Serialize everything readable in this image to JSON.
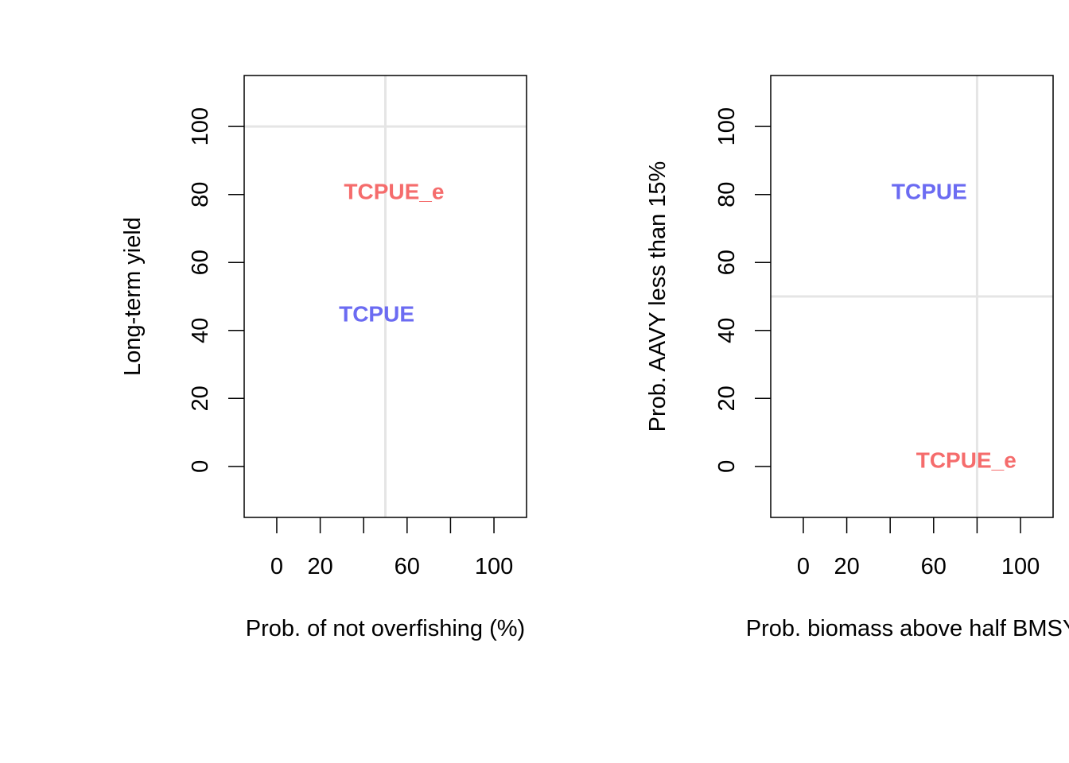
{
  "chart_data": [
    {
      "type": "scatter",
      "xlabel": "Prob. of not overfishing (%)",
      "ylabel": "Long-term yield",
      "xlim": [
        -15,
        115
      ],
      "ylim": [
        -15,
        115
      ],
      "x_ticks": [
        0,
        20,
        40,
        60,
        80,
        100
      ],
      "x_tick_labels": [
        "0",
        "20",
        "",
        "60",
        "",
        "100"
      ],
      "y_ticks": [
        0,
        20,
        40,
        60,
        80,
        100
      ],
      "y_tick_labels": [
        "0",
        "20",
        "40",
        "60",
        "80",
        "100"
      ],
      "reference_lines": {
        "vertical_x": 50,
        "horizontal_y": 100,
        "color": "#e5e5e5"
      },
      "points": [
        {
          "label": "TCPUE_e",
          "x": 54,
          "y": 81,
          "color": "#f56c6c"
        },
        {
          "label": "TCPUE",
          "x": 46,
          "y": 45,
          "color": "#6b6bf2"
        }
      ]
    },
    {
      "type": "scatter",
      "xlabel": "Prob. biomass above half BMSY",
      "ylabel": "Prob. AAVY less than 15%",
      "xlim": [
        -15,
        115
      ],
      "ylim": [
        -15,
        115
      ],
      "x_ticks": [
        0,
        20,
        40,
        60,
        80,
        100
      ],
      "x_tick_labels": [
        "0",
        "20",
        "",
        "60",
        "",
        "100"
      ],
      "y_ticks": [
        0,
        20,
        40,
        60,
        80,
        100
      ],
      "y_tick_labels": [
        "0",
        "20",
        "40",
        "60",
        "80",
        "100"
      ],
      "reference_lines": {
        "vertical_x": 80,
        "horizontal_y": 50,
        "color": "#e5e5e5"
      },
      "points": [
        {
          "label": "TCPUE",
          "x": 58,
          "y": 81,
          "color": "#6b6bf2"
        },
        {
          "label": "TCPUE_e",
          "x": 75,
          "y": 2,
          "color": "#f56c6c"
        }
      ]
    }
  ]
}
